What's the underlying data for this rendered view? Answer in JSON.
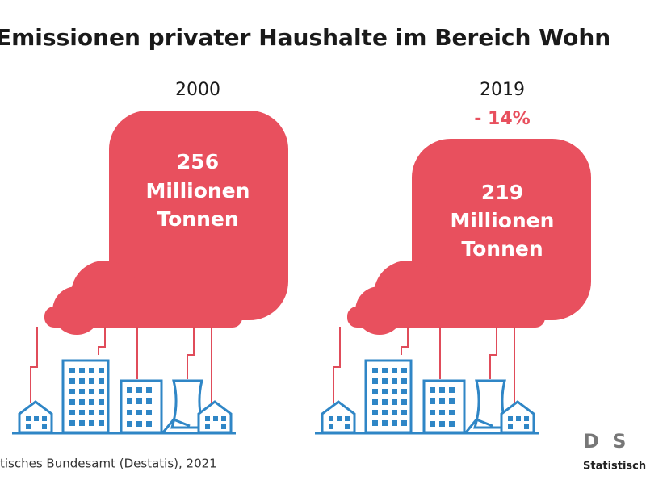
{
  "title": "Emissionen privater Haushalte im Bereich Wohn",
  "panels": [
    {
      "year": "2000",
      "value": "256",
      "unit_line1": "Millionen",
      "unit_line2": "Tonnen"
    },
    {
      "year": "2019",
      "change": "- 14%",
      "value": "219",
      "unit_line1": "Millionen",
      "unit_line2": "Tonnen"
    }
  ],
  "source": "tisches Bundesamt (Destatis), 2021",
  "logo": {
    "mark": "D S",
    "text": "Statistische"
  }
}
